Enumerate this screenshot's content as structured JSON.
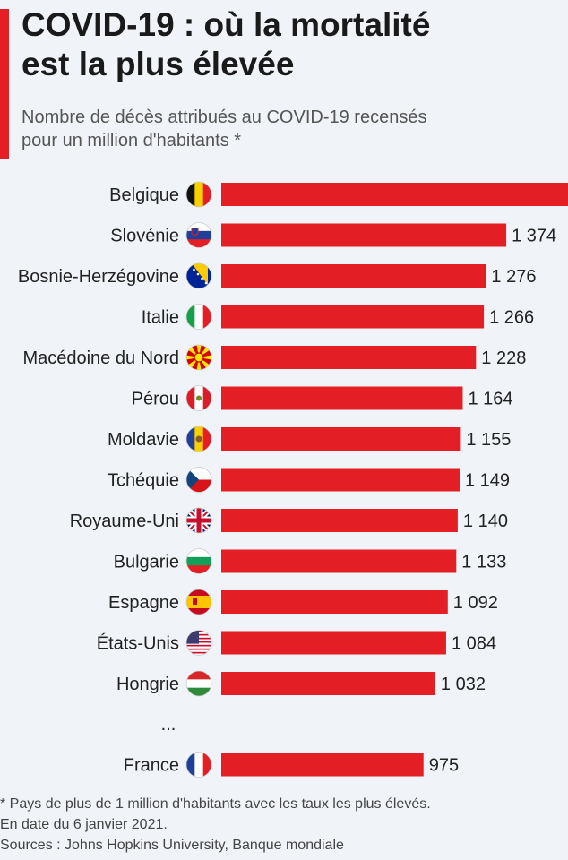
{
  "header": {
    "title_line1": "COVID-19 : où la mortalité",
    "title_line2": "est la plus élevée",
    "subtitle_line1": "Nombre de décès attribués au COVID-19 recensés",
    "subtitle_line2": "pour un million d'habitants *"
  },
  "colors": {
    "accent": "#e31e24",
    "bar": "#e31e24",
    "background": "#f0f4f8"
  },
  "chart_data": {
    "type": "bar",
    "orientation": "horizontal",
    "title": "COVID-19 : où la mortalité est la plus élevée",
    "subtitle": "Nombre de décès attribués au COVID-19 recensés pour un million d'habitants *",
    "categories": [
      "Belgique",
      "Slovénie",
      "Bosnie-Herzégovine",
      "Italie",
      "Macédoine du Nord",
      "Pérou",
      "Moldavie",
      "Tchéquie",
      "Royaume-Uni",
      "Bulgarie",
      "Espagne",
      "États-Unis",
      "Hongrie",
      "France"
    ],
    "values": [
      1740,
      1374,
      1276,
      1266,
      1228,
      1164,
      1155,
      1149,
      1140,
      1133,
      1092,
      1084,
      1032,
      975
    ],
    "value_labels": [
      "",
      "1 374",
      "1 276",
      "1 266",
      "1 228",
      "1 164",
      "1 155",
      "1 149",
      "1 140",
      "1 133",
      "1 092",
      "1 084",
      "1 032",
      "975"
    ],
    "flags": [
      "belgium-flag-icon",
      "slovenia-flag-icon",
      "bosnia-flag-icon",
      "italy-flag-icon",
      "north-macedonia-flag-icon",
      "peru-flag-icon",
      "moldova-flag-icon",
      "czechia-flag-icon",
      "uk-flag-icon",
      "bulgaria-flag-icon",
      "spain-flag-icon",
      "usa-flag-icon",
      "hungary-flag-icon",
      "france-flag-icon"
    ],
    "gap_marker": "...",
    "gap_before_index": 13,
    "grid": false,
    "legend": "none"
  },
  "footer": {
    "note1": "* Pays de plus de 1 million d'habitants avec les taux les plus élevés.",
    "note2": "En date du 6 janvier 2021.",
    "sources": "Sources : Johns Hopkins University, Banque mondiale"
  }
}
